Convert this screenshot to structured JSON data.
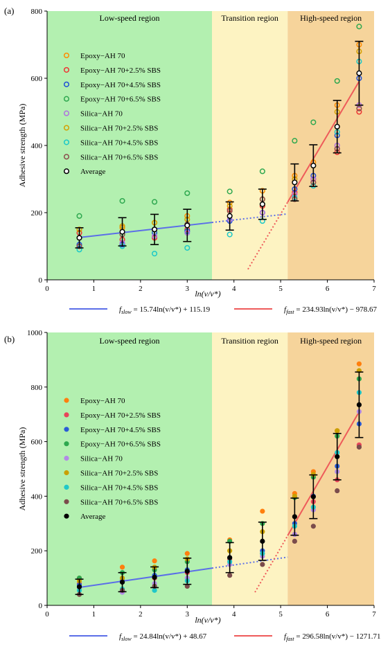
{
  "chart_data": [
    {
      "type": "scatter",
      "panel_label": "(a)",
      "marker_style": "hollow",
      "xlabel": "ln(v/v*)",
      "ylabel": "Adhesive strength (MPa)",
      "xlim": [
        0,
        7
      ],
      "ylim": [
        0,
        800
      ],
      "xticks": [
        "0",
        "1",
        "2",
        "3",
        "4",
        "5",
        "6",
        "7"
      ],
      "yticks": [
        "0",
        "200",
        "400",
        "600",
        "800"
      ],
      "regions": [
        {
          "label": "Low-speed region",
          "x0": 0,
          "x1": 3.53,
          "color": "#b3f0b0"
        },
        {
          "label": "Transition region",
          "x0": 3.53,
          "x1": 5.15,
          "color": "#fdf3c2"
        },
        {
          "label": "High-speed region",
          "x0": 5.15,
          "x1": 7,
          "color": "#f6d49b"
        }
      ],
      "x": [
        0.69,
        1.61,
        2.3,
        3.0,
        3.91,
        4.61,
        5.3,
        5.7,
        6.21,
        6.68
      ],
      "series": [
        {
          "name": "Epoxy−AH 70",
          "color": "#ff8c00",
          "values": [
            150,
            155,
            170,
            190,
            230,
            265,
            310,
            350,
            520,
            700
          ]
        },
        {
          "name": "Epoxy−AH 70+2.5% SBS",
          "color": "#ee3333",
          "values": [
            140,
            120,
            125,
            150,
            210,
            220,
            260,
            300,
            380,
            500
          ]
        },
        {
          "name": "Epoxy−AH 70+4.5% SBS",
          "color": "#1f4fd6",
          "values": [
            105,
            105,
            140,
            145,
            175,
            200,
            270,
            310,
            430,
            600
          ]
        },
        {
          "name": "Epoxy−AH 70+6.5% SBS",
          "color": "#2ea84f",
          "values": [
            190,
            235,
            232,
            258,
            263,
            323,
            414,
            469,
            592,
            754
          ]
        },
        {
          "name": "Silica−AH 70",
          "color": "#b070e0",
          "values": [
            100,
            110,
            130,
            140,
            180,
            200,
            255,
            300,
            400,
            520
          ]
        },
        {
          "name": "Silica−AH 70+2.5% SBS",
          "color": "#d4a000",
          "values": [
            150,
            160,
            170,
            180,
            220,
            240,
            300,
            340,
            500,
            680
          ]
        },
        {
          "name": "Silica−AH 70+4.5% SBS",
          "color": "#1bc8c8",
          "values": [
            90,
            100,
            78,
            95,
            135,
            175,
            245,
            280,
            440,
            650
          ]
        },
        {
          "name": "Silica−AH 70+6.5% SBS",
          "color": "#8b4c4c",
          "values": [
            100,
            135,
            150,
            165,
            205,
            240,
            240,
            290,
            390,
            510
          ]
        },
        {
          "name": "Average",
          "color": "#000000",
          "values": [
            125,
            143,
            150,
            162,
            190,
            225,
            290,
            340,
            456,
            615
          ],
          "err": [
            30,
            42,
            45,
            48,
            42,
            45,
            55,
            62,
            78,
            95
          ]
        }
      ],
      "fits": [
        {
          "name": "f_slow",
          "label_main": "f",
          "label_sub": "slow",
          "formula": " = 15.74ln(v/v*) + 115.19",
          "slope": 15.74,
          "intercept": 115.19,
          "solid_x": [
            0.69,
            3.53
          ],
          "dotted_x": [
            3.53,
            5.15
          ],
          "color": "#5b6ee8"
        },
        {
          "name": "f_fast",
          "label_main": "f",
          "label_sub": "fast",
          "formula": " = 234.93ln(v/v*) − 978.67",
          "slope": 234.93,
          "intercept": -978.67,
          "solid_x": [
            5.15,
            6.68
          ],
          "dotted_x": [
            4.3,
            5.15
          ],
          "color": "#ee5a5a"
        }
      ]
    },
    {
      "type": "scatter",
      "panel_label": "(b)",
      "marker_style": "filled",
      "xlabel": "ln(v/v*)",
      "ylabel": "Adhesive strength (MPa)",
      "xlim": [
        0,
        7
      ],
      "ylim": [
        0,
        1000
      ],
      "xticks": [
        "0",
        "1",
        "2",
        "3",
        "4",
        "5",
        "6",
        "7"
      ],
      "yticks": [
        "0",
        "200",
        "400",
        "600",
        "800",
        "1000"
      ],
      "regions": [
        {
          "label": "Low-speed region",
          "x0": 0,
          "x1": 3.53,
          "color": "#b3f0b0"
        },
        {
          "label": "Transition region",
          "x0": 3.53,
          "x1": 5.15,
          "color": "#fdf3c2"
        },
        {
          "label": "High-speed region",
          "x0": 5.15,
          "x1": 7,
          "color": "#f6d49b"
        }
      ],
      "x": [
        0.69,
        1.61,
        2.3,
        3.0,
        3.91,
        4.61,
        5.3,
        5.7,
        6.21,
        6.68
      ],
      "series": [
        {
          "name": "Epoxy−AH 70",
          "color": "#ff7f0e",
          "values": [
            100,
            140,
            163,
            190,
            240,
            345,
            410,
            490,
            640,
            885
          ]
        },
        {
          "name": "Epoxy−AH 70+2.5% SBS",
          "color": "#e8455a",
          "values": [
            80,
            90,
            100,
            120,
            170,
            190,
            260,
            380,
            460,
            588
          ]
        },
        {
          "name": "Epoxy−AH 70+4.5% SBS",
          "color": "#2a5cd6",
          "values": [
            75,
            90,
            110,
            130,
            175,
            200,
            300,
            400,
            510,
            665
          ]
        },
        {
          "name": "Epoxy−AH 70+6.5% SBS",
          "color": "#2ea84f",
          "values": [
            100,
            120,
            130,
            160,
            235,
            300,
            395,
            470,
            620,
            830
          ]
        },
        {
          "name": "Silica−AH 70",
          "color": "#b28ae6",
          "values": [
            65,
            48,
            80,
            100,
            150,
            180,
            260,
            350,
            490,
            710
          ]
        },
        {
          "name": "Silica−AH 70+2.5% SBS",
          "color": "#c9a000",
          "values": [
            90,
            100,
            140,
            170,
            200,
            270,
            400,
            480,
            640,
            860
          ]
        },
        {
          "name": "Silica−AH 70+4.5% SBS",
          "color": "#20c8c8",
          "values": [
            55,
            60,
            55,
            90,
            160,
            190,
            290,
            360,
            560,
            780
          ]
        },
        {
          "name": "Silica−AH 70+6.5% SBS",
          "color": "#7b4c4c",
          "values": [
            40,
            55,
            70,
            70,
            110,
            150,
            235,
            290,
            420,
            580
          ]
        },
        {
          "name": "Average",
          "color": "#000000",
          "values": [
            68,
            85,
            103,
            125,
            175,
            235,
            325,
            398,
            545,
            735
          ],
          "err": [
            28,
            35,
            38,
            48,
            55,
            70,
            68,
            80,
            85,
            120
          ]
        }
      ],
      "fits": [
        {
          "name": "f_slow",
          "label_main": "f",
          "label_sub": "slow",
          "formula": " = 24.84ln(v/v*) + 48.67",
          "slope": 24.84,
          "intercept": 48.67,
          "solid_x": [
            0.69,
            3.53
          ],
          "dotted_x": [
            3.53,
            5.15
          ],
          "color": "#5b6ee8"
        },
        {
          "name": "f_fast",
          "label_main": "f",
          "label_sub": "fast",
          "formula": " = 296.58ln(v/v*) − 1271.71",
          "slope": 296.58,
          "intercept": -1271.71,
          "solid_x": [
            5.15,
            6.68
          ],
          "dotted_x": [
            4.45,
            5.15
          ],
          "color": "#ee5a5a"
        }
      ]
    }
  ]
}
